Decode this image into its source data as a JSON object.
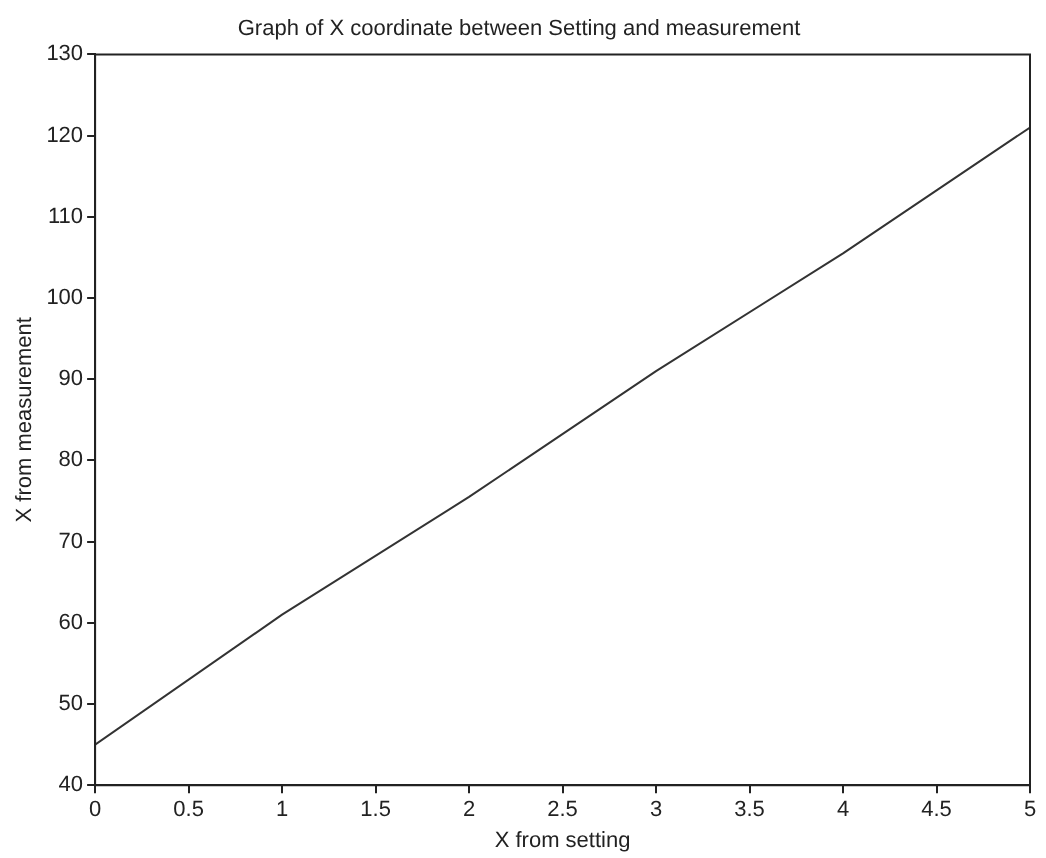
{
  "chart_data": {
    "type": "line",
    "title": "Graph of X coordinate between Setting and measurement",
    "xlabel": "X from setting",
    "ylabel": "X from measurement",
    "x": [
      0,
      1,
      2,
      3,
      4,
      5
    ],
    "series": [
      {
        "color": "#333333",
        "values": [
          45,
          61,
          75.5,
          91,
          105.5,
          121
        ]
      }
    ],
    "xlim": [
      0,
      5
    ],
    "xticks": [
      0,
      0.5,
      1,
      1.5,
      2,
      2.5,
      3,
      3.5,
      4,
      4.5,
      5
    ],
    "ylim": [
      40,
      130
    ],
    "yticks": [
      40,
      50,
      60,
      70,
      80,
      90,
      100,
      110,
      120,
      130
    ],
    "grid": false,
    "legend": false,
    "marker": "none",
    "line_style": "solid"
  }
}
